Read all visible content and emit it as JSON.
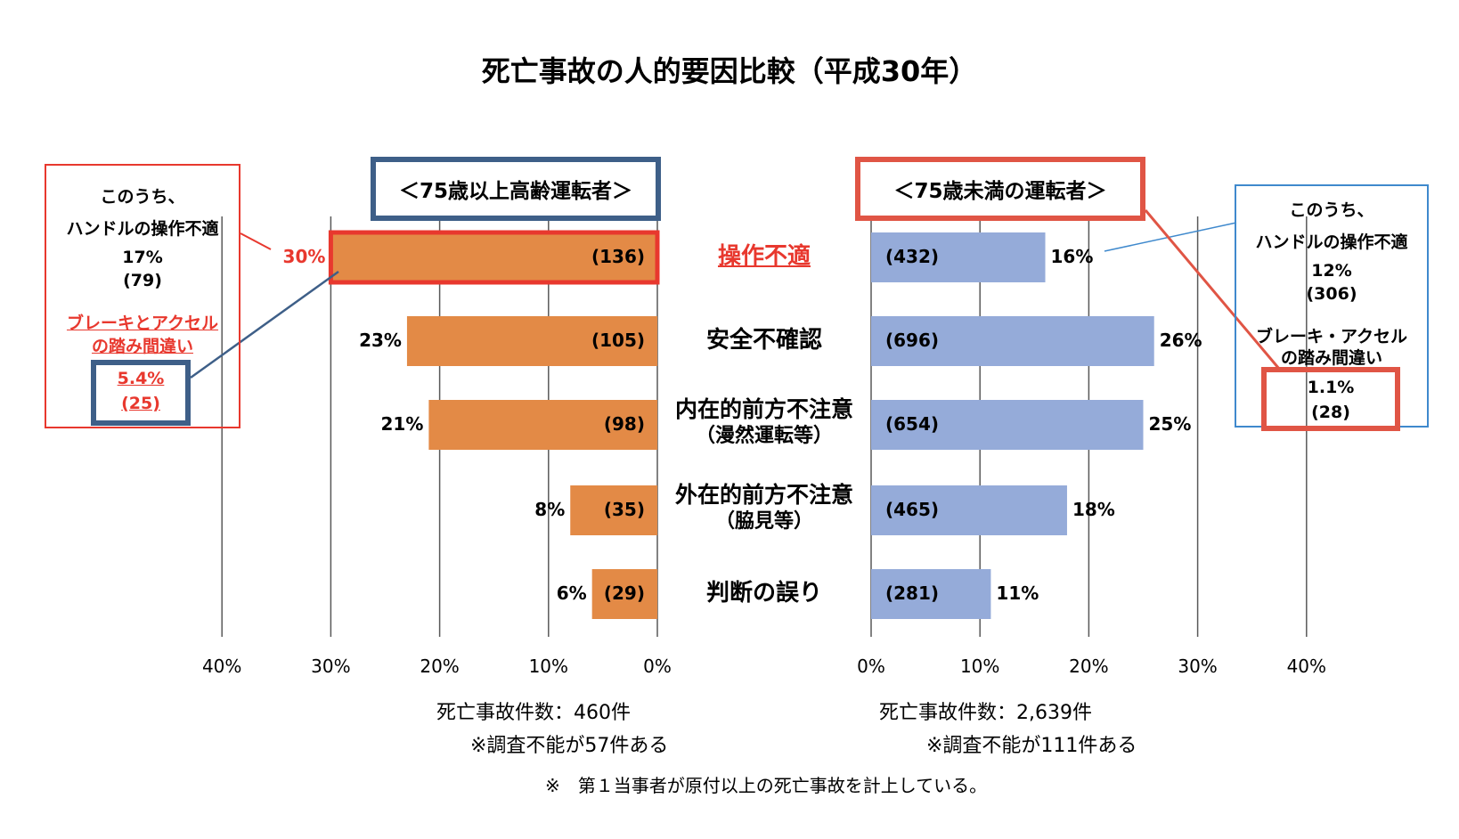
{
  "title": "死亡事故の人的要因比較（平成30年）",
  "colors": {
    "elderly_bar": "#E38A46",
    "younger_bar": "#95ABD9",
    "red": "#E8382E",
    "red_box": "#E05545",
    "dark_blue": "#3E5F88",
    "light_blue": "#3F89CD",
    "grid": "#595959"
  },
  "left_panel": {
    "header": "＜75歳以上高齢運転者＞",
    "total_cases": "死亡事故件数：460件",
    "note": "※調査不能が57件ある"
  },
  "right_panel": {
    "header": "＜75歳未満の運転者＞",
    "total_cases": "死亡事故件数：2,639件",
    "note": "※調査不能が111件ある"
  },
  "footnote": "※　第１当事者が原付以上の死亡事故を計上している。",
  "callout_left": {
    "line1": "このうち、",
    "line2": "ハンドルの操作不適",
    "pct1": "17%",
    "cnt1": "(79)",
    "brake_line1": "ブレーキとアクセル",
    "brake_line2": "の踏み間違い",
    "pct2": "5.4%",
    "cnt2": "(25)"
  },
  "callout_right": {
    "line1": "このうち、",
    "line2": "ハンドルの操作不適",
    "pct1": "12%",
    "cnt1": "(306)",
    "brake_line1": "ブレーキ・アクセル",
    "brake_line2": "の踏み間違い",
    "pct2": "1.1%",
    "cnt2": "(28)"
  },
  "chart_data": [
    {
      "type": "bar",
      "orientation": "horizontal",
      "direction": "right-to-left",
      "title": "＜75歳以上高齢運転者＞",
      "categories": [
        "操作不適",
        "安全不確認",
        "内在的前方不注意（漫然運転等）",
        "外在的前方不注意（脇見等）",
        "判断の誤り"
      ],
      "category_lines": [
        [
          "操作不適"
        ],
        [
          "安全不確認"
        ],
        [
          "内在的前方不注意",
          "（漫然運転等）"
        ],
        [
          "外在的前方不注意",
          "（脇見等）"
        ],
        [
          "判断の誤り"
        ]
      ],
      "values": [
        30,
        23,
        21,
        8,
        6
      ],
      "percent_labels": [
        "30%",
        "23%",
        "21%",
        "8%",
        "6%"
      ],
      "count_labels": [
        "(136)",
        "(105)",
        "(98)",
        "(35)",
        "(29)"
      ],
      "xlim": [
        0,
        40
      ],
      "xticks": [
        "0%",
        "10%",
        "20%",
        "30%",
        "40%"
      ],
      "grid": true,
      "highlight": "操作不適"
    },
    {
      "type": "bar",
      "orientation": "horizontal",
      "direction": "left-to-right",
      "title": "＜75歳未満の運転者＞",
      "categories": [
        "操作不適",
        "安全不確認",
        "内在的前方不注意（漫然運転等）",
        "外在的前方不注意（脇見等）",
        "判断の誤り"
      ],
      "values": [
        16,
        26,
        25,
        18,
        11
      ],
      "percent_labels": [
        "16%",
        "26%",
        "25%",
        "18%",
        "11%"
      ],
      "count_labels": [
        "(432)",
        "(696)",
        "(654)",
        "(465)",
        "(281)"
      ],
      "xlim": [
        0,
        40
      ],
      "xticks": [
        "0%",
        "10%",
        "20%",
        "30%",
        "40%"
      ],
      "grid": true
    }
  ]
}
